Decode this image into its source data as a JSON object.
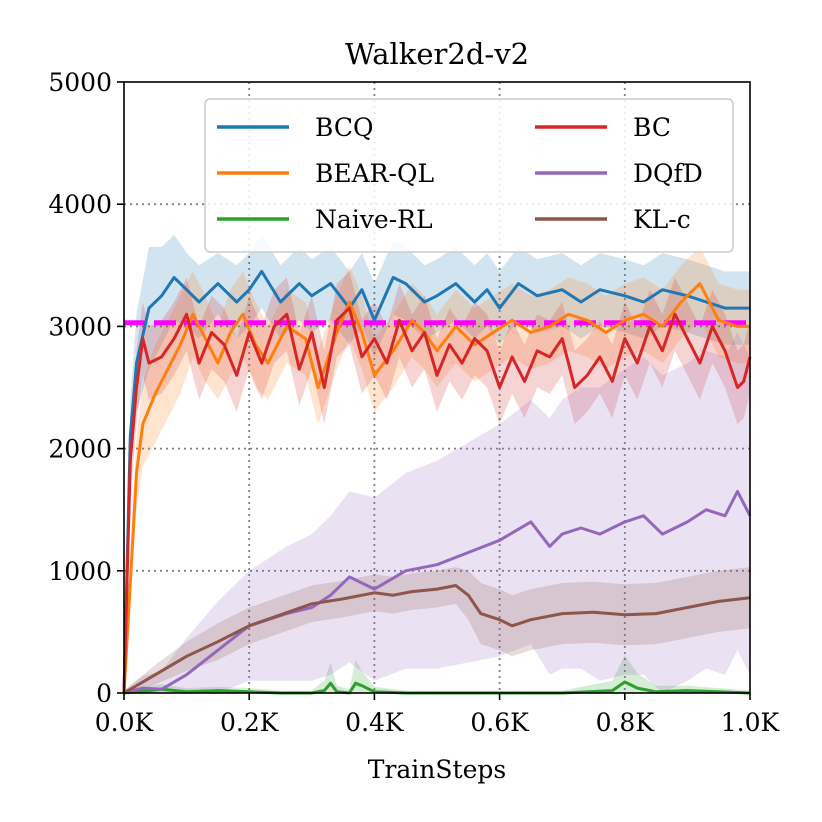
{
  "chart_data": {
    "type": "line",
    "title": "Walker2d-v2",
    "xlabel": "TrainSteps",
    "ylabel": "",
    "xlim": [
      0,
      1000
    ],
    "ylim": [
      0,
      5000
    ],
    "xticks": [
      0,
      200,
      400,
      600,
      800,
      1000
    ],
    "xtick_labels": [
      "0.0K",
      "0.2K",
      "0.4K",
      "0.6K",
      "0.8K",
      "1.0K"
    ],
    "yticks": [
      0,
      1000,
      2000,
      3000,
      4000,
      5000
    ],
    "ytick_labels": [
      "0",
      "1000",
      "2000",
      "3000",
      "4000",
      "5000"
    ],
    "grid": true,
    "legend_position": "top-right",
    "reference_line": {
      "y": 3030,
      "color": "#ff00ff",
      "style": "dashed"
    },
    "series": [
      {
        "name": "BCQ",
        "color": "#1f77b4",
        "x": [
          0,
          10,
          20,
          40,
          60,
          80,
          100,
          120,
          150,
          180,
          200,
          220,
          250,
          280,
          300,
          330,
          360,
          380,
          400,
          430,
          450,
          480,
          500,
          530,
          560,
          580,
          600,
          630,
          660,
          700,
          730,
          760,
          800,
          830,
          860,
          900,
          930,
          960,
          1000
        ],
        "y": [
          0,
          2100,
          2700,
          3150,
          3250,
          3400,
          3300,
          3200,
          3350,
          3200,
          3300,
          3450,
          3200,
          3350,
          3250,
          3350,
          3150,
          3300,
          3050,
          3400,
          3350,
          3200,
          3250,
          3350,
          3200,
          3300,
          3150,
          3350,
          3250,
          3300,
          3200,
          3300,
          3250,
          3200,
          3300,
          3250,
          3200,
          3150,
          3150
        ],
        "band": [
          200,
          300,
          400,
          500,
          400,
          350,
          300,
          300,
          250,
          300,
          300,
          300,
          300,
          300,
          300,
          300,
          300,
          300,
          300,
          300,
          300,
          300,
          300,
          300,
          300,
          300,
          300,
          300,
          300,
          300,
          300,
          300,
          300,
          300,
          300,
          300,
          300,
          300,
          300
        ]
      },
      {
        "name": "BEAR-QL",
        "color": "#ff7f0e",
        "x": [
          0,
          10,
          20,
          30,
          50,
          70,
          90,
          110,
          130,
          150,
          170,
          190,
          210,
          230,
          260,
          290,
          310,
          340,
          360,
          380,
          400,
          430,
          460,
          480,
          500,
          530,
          560,
          590,
          620,
          650,
          680,
          710,
          740,
          770,
          800,
          830,
          860,
          890,
          920,
          950,
          980,
          1000
        ],
        "y": [
          0,
          900,
          1800,
          2200,
          2450,
          2650,
          2850,
          3100,
          2900,
          2700,
          2950,
          3100,
          2850,
          2700,
          3000,
          2900,
          2500,
          2950,
          3200,
          2950,
          2600,
          2800,
          3050,
          2950,
          2800,
          3000,
          2850,
          2950,
          3050,
          2950,
          3000,
          3100,
          3050,
          2950,
          3050,
          3100,
          3000,
          3200,
          3350,
          3050,
          3000,
          3000
        ],
        "band": [
          100,
          200,
          300,
          350,
          400,
          400,
          400,
          350,
          350,
          300,
          350,
          350,
          350,
          300,
          300,
          300,
          300,
          300,
          300,
          300,
          300,
          300,
          300,
          300,
          300,
          300,
          300,
          300,
          300,
          300,
          300,
          300,
          300,
          300,
          300,
          300,
          300,
          300,
          300,
          300,
          300,
          300
        ]
      },
      {
        "name": "Naive-RL",
        "color": "#2ca02c",
        "x": [
          0,
          20,
          40,
          60,
          100,
          150,
          200,
          250,
          300,
          320,
          330,
          340,
          360,
          370,
          380,
          400,
          450,
          500,
          550,
          600,
          700,
          780,
          800,
          820,
          850,
          900,
          950,
          1000
        ],
        "y": [
          0,
          10,
          20,
          30,
          10,
          20,
          10,
          0,
          0,
          20,
          80,
          10,
          0,
          80,
          60,
          10,
          0,
          0,
          0,
          0,
          0,
          20,
          90,
          40,
          10,
          20,
          10,
          0
        ],
        "band": [
          10,
          20,
          40,
          40,
          30,
          30,
          30,
          20,
          20,
          80,
          170,
          50,
          30,
          190,
          120,
          40,
          20,
          20,
          20,
          20,
          20,
          80,
          220,
          120,
          50,
          40,
          30,
          20
        ]
      },
      {
        "name": "BC",
        "color": "#d62728",
        "x": [
          0,
          10,
          20,
          30,
          40,
          60,
          80,
          100,
          120,
          140,
          160,
          180,
          200,
          220,
          240,
          260,
          280,
          300,
          320,
          340,
          360,
          380,
          400,
          420,
          440,
          460,
          480,
          500,
          520,
          540,
          560,
          580,
          600,
          620,
          640,
          660,
          680,
          700,
          720,
          740,
          760,
          780,
          800,
          820,
          840,
          860,
          880,
          900,
          920,
          940,
          960,
          980,
          990,
          1000
        ],
        "y": [
          0,
          1900,
          2500,
          2900,
          2700,
          2750,
          2900,
          3100,
          2700,
          2950,
          2850,
          2600,
          2950,
          2700,
          3000,
          3100,
          2650,
          2950,
          2500,
          3050,
          3150,
          2750,
          2900,
          2700,
          3050,
          2800,
          2950,
          2600,
          2850,
          2700,
          2900,
          2800,
          2500,
          2750,
          2550,
          2800,
          2750,
          2900,
          2500,
          2600,
          2750,
          2550,
          2900,
          2700,
          3000,
          2800,
          3100,
          2900,
          2700,
          3000,
          2800,
          2500,
          2550,
          2750
        ],
        "band": [
          100,
          300,
          300,
          300,
          300,
          300,
          300,
          300,
          300,
          300,
          300,
          300,
          300,
          300,
          300,
          300,
          300,
          300,
          300,
          300,
          300,
          300,
          300,
          300,
          300,
          300,
          300,
          300,
          300,
          300,
          300,
          300,
          300,
          300,
          300,
          300,
          300,
          300,
          300,
          300,
          300,
          300,
          300,
          300,
          300,
          300,
          300,
          300,
          300,
          300,
          300,
          300,
          300,
          300
        ]
      },
      {
        "name": "DQfD",
        "color": "#9467bd",
        "x": [
          0,
          30,
          60,
          100,
          150,
          200,
          230,
          260,
          300,
          330,
          360,
          400,
          450,
          500,
          550,
          600,
          650,
          680,
          700,
          730,
          760,
          800,
          830,
          860,
          900,
          930,
          960,
          980,
          1000
        ],
        "y": [
          0,
          40,
          30,
          150,
          350,
          550,
          600,
          650,
          700,
          800,
          950,
          850,
          1000,
          1050,
          1150,
          1250,
          1400,
          1200,
          1300,
          1350,
          1300,
          1400,
          1450,
          1300,
          1400,
          1500,
          1450,
          1650,
          1450
        ],
        "band": [
          20,
          100,
          150,
          300,
          400,
          450,
          500,
          550,
          600,
          650,
          700,
          750,
          800,
          850,
          900,
          950,
          1000,
          1050,
          1100,
          1150,
          1200,
          1250,
          1300,
          1300,
          1300,
          1300,
          1300,
          1300,
          1300
        ]
      },
      {
        "name": "KL-c",
        "color": "#8c564b",
        "x": [
          0,
          50,
          100,
          150,
          200,
          250,
          300,
          350,
          400,
          430,
          460,
          500,
          530,
          550,
          570,
          600,
          620,
          650,
          700,
          750,
          800,
          850,
          900,
          950,
          1000
        ],
        "y": [
          0,
          150,
          300,
          420,
          550,
          640,
          730,
          770,
          820,
          800,
          830,
          850,
          880,
          800,
          650,
          600,
          550,
          600,
          650,
          660,
          640,
          650,
          700,
          750,
          780
        ],
        "band": [
          20,
          80,
          120,
          150,
          150,
          150,
          150,
          150,
          150,
          150,
          150,
          150,
          150,
          200,
          250,
          250,
          250,
          250,
          250,
          250,
          250,
          250,
          250,
          250,
          250
        ]
      }
    ]
  }
}
